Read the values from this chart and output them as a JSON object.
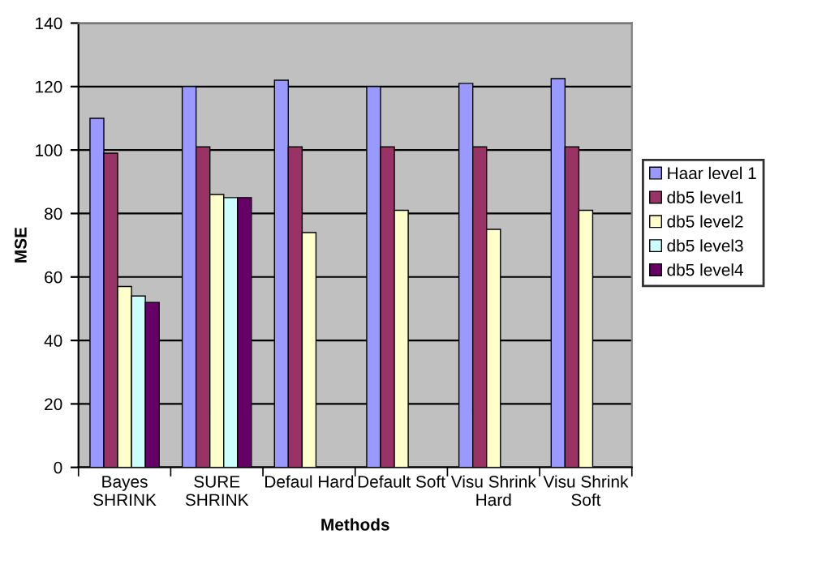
{
  "chart_data": {
    "type": "bar",
    "xlabel": "Methods",
    "ylabel": "MSE",
    "categories": [
      "Bayes\nSHRINK",
      "SURE\nSHRINK",
      "Defaul Hard",
      "Default Soft",
      "Visu Shrink\nHard",
      "Visu Shrink\nSoft"
    ],
    "series": [
      {
        "name": "Haar level 1",
        "color": "#9999ff",
        "values": [
          110,
          120,
          122,
          120,
          121,
          122.5
        ]
      },
      {
        "name": "db5 level1",
        "color": "#993366",
        "values": [
          99,
          101,
          101,
          101,
          101,
          101
        ]
      },
      {
        "name": "db5 level2",
        "color": "#ffffcc",
        "values": [
          57,
          86,
          74,
          81,
          75,
          81
        ]
      },
      {
        "name": "db5 level3",
        "color": "#ccffff",
        "values": [
          54,
          85,
          null,
          null,
          null,
          null
        ]
      },
      {
        "name": "db5 level4",
        "color": "#660066",
        "values": [
          52,
          85,
          null,
          null,
          null,
          null
        ]
      }
    ],
    "ylim": [
      0,
      140
    ],
    "yticks": [
      0,
      20,
      40,
      60,
      80,
      100,
      120,
      140
    ],
    "grid": "y",
    "legend": "right"
  }
}
